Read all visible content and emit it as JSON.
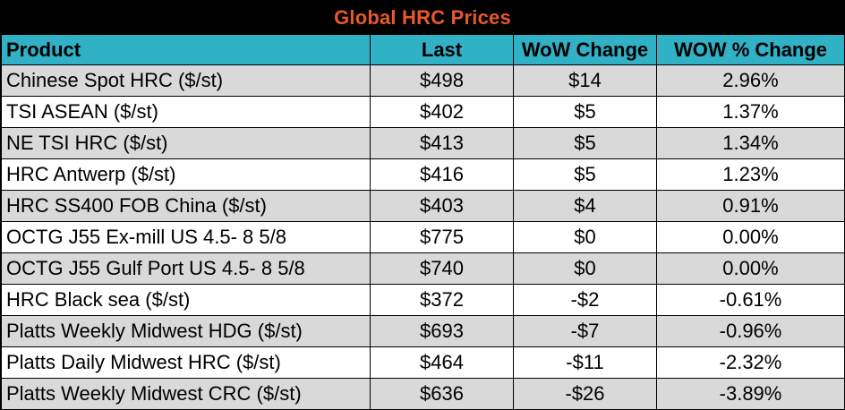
{
  "chart_data": {
    "type": "table",
    "title": "Global HRC Prices",
    "columns": [
      "Product",
      "Last",
      "WoW Change",
      "WOW % Change"
    ],
    "rows": [
      {
        "product": "Chinese Spot HRC ($/st)",
        "last": "$498",
        "wow": "$14",
        "pct": "2.96%"
      },
      {
        "product": "TSI ASEAN ($/st)",
        "last": "$402",
        "wow": "$5",
        "pct": "1.37%"
      },
      {
        "product": "NE TSI HRC ($/st)",
        "last": "$413",
        "wow": "$5",
        "pct": "1.34%"
      },
      {
        "product": "HRC Antwerp ($/st)",
        "last": "$416",
        "wow": "$5",
        "pct": "1.23%"
      },
      {
        "product": "HRC SS400 FOB China ($/st)",
        "last": "$403",
        "wow": "$4",
        "pct": "0.91%"
      },
      {
        "product": "OCTG J55 Ex-mill US 4.5- 8 5/8",
        "last": "$775",
        "wow": "$0",
        "pct": "0.00%"
      },
      {
        "product": "OCTG J55 Gulf Port US 4.5- 8 5/8",
        "last": "$740",
        "wow": "$0",
        "pct": "0.00%"
      },
      {
        "product": "HRC Black sea ($/st)",
        "last": "$372",
        "wow": "-$2",
        "pct": "-0.61%"
      },
      {
        "product": "Platts Weekly Midwest HDG ($/st)",
        "last": "$693",
        "wow": "-$7",
        "pct": "-0.96%"
      },
      {
        "product": "Platts Daily Midwest HRC ($/st)",
        "last": "$464",
        "wow": "-$11",
        "pct": "-2.32%"
      },
      {
        "product": "Platts Weekly Midwest CRC ($/st)",
        "last": "$636",
        "wow": "-$26",
        "pct": "-3.89%"
      }
    ]
  },
  "colors": {
    "title_background": "#000000",
    "title_text": "#e8592a",
    "header_background": "#31b1c6",
    "shaded_row": "#d9d9d9",
    "plain_row": "#ffffff"
  }
}
